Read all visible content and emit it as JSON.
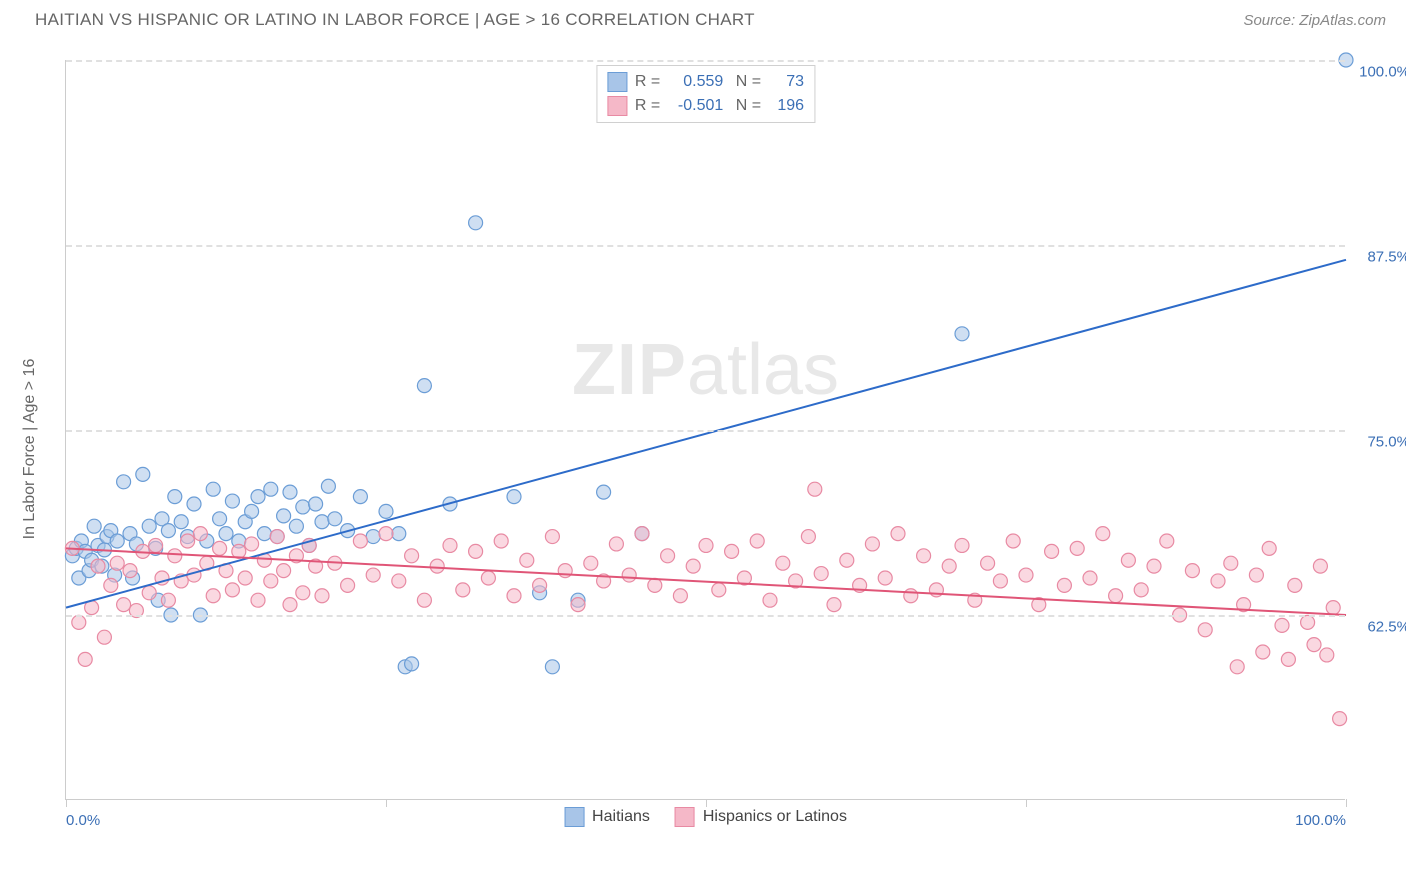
{
  "header": {
    "title": "HAITIAN VS HISPANIC OR LATINO IN LABOR FORCE | AGE > 16 CORRELATION CHART",
    "source": "Source: ZipAtlas.com"
  },
  "chart": {
    "type": "scatter",
    "y_axis_label": "In Labor Force | Age > 16",
    "xlim": [
      0,
      100
    ],
    "ylim": [
      50,
      100
    ],
    "x_ticks": [
      0,
      25,
      50,
      75,
      100
    ],
    "x_tick_labels": [
      "0.0%",
      "",
      "",
      "",
      "100.0%"
    ],
    "y_ticks": [
      62.5,
      75.0,
      87.5,
      100.0
    ],
    "y_tick_labels": [
      "62.5%",
      "75.0%",
      "87.5%",
      "100.0%"
    ],
    "grid_color": "#e0e0e0",
    "background_color": "#ffffff",
    "axis_color": "#cccccc",
    "label_color": "#3b6fb5",
    "marker_radius": 7,
    "marker_stroke_width": 1.2,
    "trend_line_width": 2,
    "watermark": "ZIPatlas",
    "series": [
      {
        "name": "Haitians",
        "fill_color": "#a8c5e8",
        "stroke_color": "#6b9dd6",
        "line_color": "#2d6bc9",
        "fill_opacity": 0.55,
        "legend_stats": {
          "R": "0.559",
          "N": "73"
        },
        "trend_line": {
          "x1": 0,
          "y1": 63.0,
          "x2": 100,
          "y2": 86.5
        },
        "points": [
          [
            0.5,
            66.5
          ],
          [
            0.8,
            67
          ],
          [
            1,
            65
          ],
          [
            1.2,
            67.5
          ],
          [
            1.5,
            66.8
          ],
          [
            1.8,
            65.5
          ],
          [
            2,
            66.2
          ],
          [
            2.2,
            68.5
          ],
          [
            2.5,
            67.2
          ],
          [
            2.8,
            65.8
          ],
          [
            3,
            66.9
          ],
          [
            3.2,
            67.8
          ],
          [
            3.5,
            68.2
          ],
          [
            3.8,
            65.2
          ],
          [
            4,
            67.5
          ],
          [
            4.5,
            71.5
          ],
          [
            5,
            68
          ],
          [
            5.2,
            65
          ],
          [
            5.5,
            67.3
          ],
          [
            6,
            72
          ],
          [
            6.5,
            68.5
          ],
          [
            7,
            67
          ],
          [
            7.2,
            63.5
          ],
          [
            7.5,
            69
          ],
          [
            8,
            68.2
          ],
          [
            8.2,
            62.5
          ],
          [
            8.5,
            70.5
          ],
          [
            9,
            68.8
          ],
          [
            9.5,
            67.8
          ],
          [
            10,
            70
          ],
          [
            10.5,
            62.5
          ],
          [
            11,
            67.5
          ],
          [
            11.5,
            71
          ],
          [
            12,
            69
          ],
          [
            12.5,
            68
          ],
          [
            13,
            70.2
          ],
          [
            13.5,
            67.5
          ],
          [
            14,
            68.8
          ],
          [
            14.5,
            69.5
          ],
          [
            15,
            70.5
          ],
          [
            15.5,
            68
          ],
          [
            16,
            71
          ],
          [
            16.5,
            67.8
          ],
          [
            17,
            69.2
          ],
          [
            17.5,
            70.8
          ],
          [
            18,
            68.5
          ],
          [
            18.5,
            69.8
          ],
          [
            19,
            67.2
          ],
          [
            19.5,
            70
          ],
          [
            20,
            68.8
          ],
          [
            20.5,
            71.2
          ],
          [
            21,
            69
          ],
          [
            22,
            68.2
          ],
          [
            23,
            70.5
          ],
          [
            24,
            67.8
          ],
          [
            25,
            69.5
          ],
          [
            26,
            68
          ],
          [
            26.5,
            59
          ],
          [
            27,
            59.2
          ],
          [
            28,
            78
          ],
          [
            30,
            70
          ],
          [
            32,
            89
          ],
          [
            35,
            70.5
          ],
          [
            37,
            64
          ],
          [
            38,
            59
          ],
          [
            40,
            63.5
          ],
          [
            42,
            70.8
          ],
          [
            45,
            68
          ],
          [
            70,
            81.5
          ],
          [
            100,
            100
          ]
        ]
      },
      {
        "name": "Hispanics or Latinos",
        "fill_color": "#f5b8c8",
        "stroke_color": "#e88aa3",
        "line_color": "#e05577",
        "fill_opacity": 0.55,
        "legend_stats": {
          "R": "-0.501",
          "N": "196"
        },
        "trend_line": {
          "x1": 0,
          "y1": 67.0,
          "x2": 100,
          "y2": 62.5
        },
        "points": [
          [
            0.5,
            67
          ],
          [
            1,
            62
          ],
          [
            1.5,
            59.5
          ],
          [
            2,
            63
          ],
          [
            2.5,
            65.8
          ],
          [
            3,
            61
          ],
          [
            3.5,
            64.5
          ],
          [
            4,
            66
          ],
          [
            4.5,
            63.2
          ],
          [
            5,
            65.5
          ],
          [
            5.5,
            62.8
          ],
          [
            6,
            66.8
          ],
          [
            6.5,
            64
          ],
          [
            7,
            67.2
          ],
          [
            7.5,
            65
          ],
          [
            8,
            63.5
          ],
          [
            8.5,
            66.5
          ],
          [
            9,
            64.8
          ],
          [
            9.5,
            67.5
          ],
          [
            10,
            65.2
          ],
          [
            10.5,
            68
          ],
          [
            11,
            66
          ],
          [
            11.5,
            63.8
          ],
          [
            12,
            67
          ],
          [
            12.5,
            65.5
          ],
          [
            13,
            64.2
          ],
          [
            13.5,
            66.8
          ],
          [
            14,
            65
          ],
          [
            14.5,
            67.3
          ],
          [
            15,
            63.5
          ],
          [
            15.5,
            66.2
          ],
          [
            16,
            64.8
          ],
          [
            16.5,
            67.8
          ],
          [
            17,
            65.5
          ],
          [
            17.5,
            63.2
          ],
          [
            18,
            66.5
          ],
          [
            18.5,
            64
          ],
          [
            19,
            67.2
          ],
          [
            19.5,
            65.8
          ],
          [
            20,
            63.8
          ],
          [
            21,
            66
          ],
          [
            22,
            64.5
          ],
          [
            23,
            67.5
          ],
          [
            24,
            65.2
          ],
          [
            25,
            68
          ],
          [
            26,
            64.8
          ],
          [
            27,
            66.5
          ],
          [
            28,
            63.5
          ],
          [
            29,
            65.8
          ],
          [
            30,
            67.2
          ],
          [
            31,
            64.2
          ],
          [
            32,
            66.8
          ],
          [
            33,
            65
          ],
          [
            34,
            67.5
          ],
          [
            35,
            63.8
          ],
          [
            36,
            66.2
          ],
          [
            37,
            64.5
          ],
          [
            38,
            67.8
          ],
          [
            39,
            65.5
          ],
          [
            40,
            63.2
          ],
          [
            41,
            66
          ],
          [
            42,
            64.8
          ],
          [
            43,
            67.3
          ],
          [
            44,
            65.2
          ],
          [
            45,
            68
          ],
          [
            46,
            64.5
          ],
          [
            47,
            66.5
          ],
          [
            48,
            63.8
          ],
          [
            49,
            65.8
          ],
          [
            50,
            67.2
          ],
          [
            51,
            64.2
          ],
          [
            52,
            66.8
          ],
          [
            53,
            65
          ],
          [
            54,
            67.5
          ],
          [
            55,
            63.5
          ],
          [
            56,
            66
          ],
          [
            57,
            64.8
          ],
          [
            58,
            67.8
          ],
          [
            58.5,
            71
          ],
          [
            59,
            65.3
          ],
          [
            60,
            63.2
          ],
          [
            61,
            66.2
          ],
          [
            62,
            64.5
          ],
          [
            63,
            67.3
          ],
          [
            64,
            65
          ],
          [
            65,
            68
          ],
          [
            66,
            63.8
          ],
          [
            67,
            66.5
          ],
          [
            68,
            64.2
          ],
          [
            69,
            65.8
          ],
          [
            70,
            67.2
          ],
          [
            71,
            63.5
          ],
          [
            72,
            66
          ],
          [
            73,
            64.8
          ],
          [
            74,
            67.5
          ],
          [
            75,
            65.2
          ],
          [
            76,
            63.2
          ],
          [
            77,
            66.8
          ],
          [
            78,
            64.5
          ],
          [
            79,
            67
          ],
          [
            80,
            65
          ],
          [
            81,
            68
          ],
          [
            82,
            63.8
          ],
          [
            83,
            66.2
          ],
          [
            84,
            64.2
          ],
          [
            85,
            65.8
          ],
          [
            86,
            67.5
          ],
          [
            87,
            62.5
          ],
          [
            88,
            65.5
          ],
          [
            89,
            61.5
          ],
          [
            90,
            64.8
          ],
          [
            91,
            66
          ],
          [
            91.5,
            59
          ],
          [
            92,
            63.2
          ],
          [
            93,
            65.2
          ],
          [
            93.5,
            60
          ],
          [
            94,
            67
          ],
          [
            95,
            61.8
          ],
          [
            95.5,
            59.5
          ],
          [
            96,
            64.5
          ],
          [
            97,
            62
          ],
          [
            97.5,
            60.5
          ],
          [
            98,
            65.8
          ],
          [
            98.5,
            59.8
          ],
          [
            99,
            63
          ],
          [
            99.5,
            55.5
          ]
        ]
      }
    ]
  },
  "legend_bottom": [
    {
      "label": "Haitians",
      "fill": "#a8c5e8",
      "stroke": "#6b9dd6"
    },
    {
      "label": "Hispanics or Latinos",
      "fill": "#f5b8c8",
      "stroke": "#e88aa3"
    }
  ]
}
